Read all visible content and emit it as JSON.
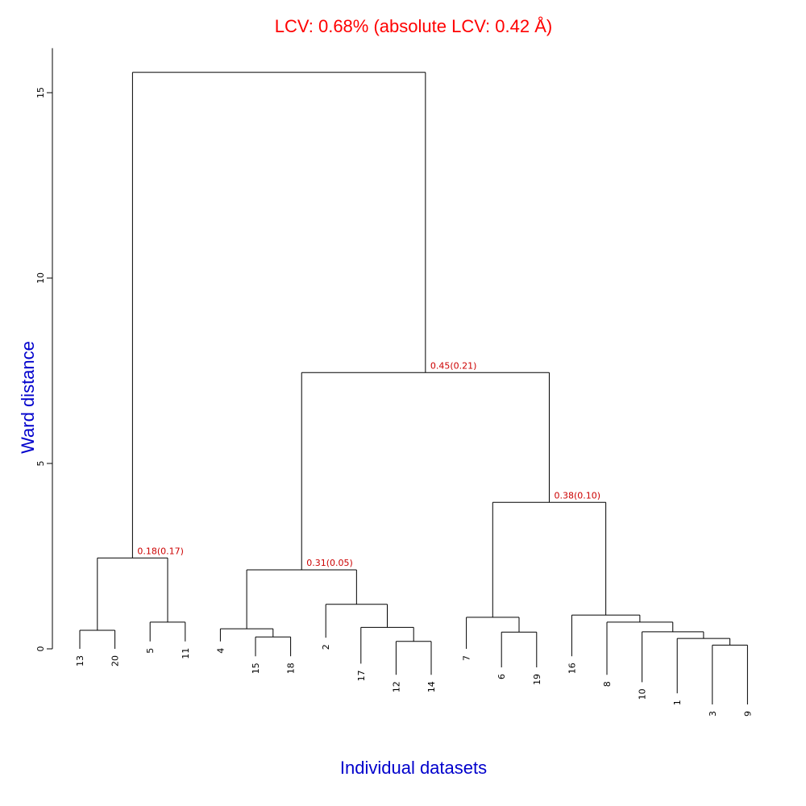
{
  "chart_data": {
    "type": "dendrogram",
    "title": "LCV: 0.68% (absolute LCV: 0.42 Å)",
    "xlabel": "Individual datasets",
    "ylabel": "Ward distance",
    "ylim": [
      0,
      16
    ],
    "yticks": [
      0,
      5,
      10,
      15
    ],
    "leaf_order": [
      "13",
      "20",
      "5",
      "11",
      "4",
      "15",
      "18",
      "2",
      "17",
      "12",
      "14",
      "7",
      "6",
      "19",
      "16",
      "8",
      "10",
      "1",
      "3",
      "9"
    ],
    "leaves": [
      {
        "label": "13",
        "height": 0.0
      },
      {
        "label": "20",
        "height": 0.0
      },
      {
        "label": "5",
        "height": 0.2
      },
      {
        "label": "11",
        "height": 0.2
      },
      {
        "label": "4",
        "height": 0.2
      },
      {
        "label": "15",
        "height": -0.2
      },
      {
        "label": "18",
        "height": -0.2
      },
      {
        "label": "2",
        "height": 0.3
      },
      {
        "label": "17",
        "height": -0.4
      },
      {
        "label": "12",
        "height": -0.7
      },
      {
        "label": "14",
        "height": -0.7
      },
      {
        "label": "7",
        "height": 0.0
      },
      {
        "label": "6",
        "height": -0.5
      },
      {
        "label": "19",
        "height": -0.5
      },
      {
        "label": "16",
        "height": -0.2
      },
      {
        "label": "8",
        "height": -0.7
      },
      {
        "label": "10",
        "height": -0.9
      },
      {
        "label": "1",
        "height": -1.2
      },
      {
        "label": "3",
        "height": -1.5
      },
      {
        "label": "9",
        "height": -1.5
      }
    ],
    "merges": [
      {
        "id": "m_13_20",
        "left": "13",
        "right": "20",
        "height": 0.5
      },
      {
        "id": "m_5_11",
        "left": "5",
        "right": "11",
        "height": 0.72
      },
      {
        "id": "m_g1",
        "left": "m_13_20",
        "right": "m_5_11",
        "height": 2.45,
        "label": "0.18(0.17)"
      },
      {
        "id": "m_15_18",
        "left": "15",
        "right": "18",
        "height": 0.32
      },
      {
        "id": "m_4_1518",
        "left": "4",
        "right": "m_15_18",
        "height": 0.54
      },
      {
        "id": "m_12_14",
        "left": "12",
        "right": "14",
        "height": 0.2
      },
      {
        "id": "m_17_1214",
        "left": "17",
        "right": "m_12_14",
        "height": 0.58
      },
      {
        "id": "m_2_17",
        "left": "2",
        "right": "m_17_1214",
        "height": 1.2
      },
      {
        "id": "m_g2",
        "left": "m_4_1518",
        "right": "m_2_17",
        "height": 2.13,
        "label": "0.31(0.05)"
      },
      {
        "id": "m_6_19",
        "left": "6",
        "right": "19",
        "height": 0.45
      },
      {
        "id": "m_7_619",
        "left": "7",
        "right": "m_6_19",
        "height": 0.85
      },
      {
        "id": "m_3_9",
        "left": "3",
        "right": "9",
        "height": 0.1
      },
      {
        "id": "m_1_39",
        "left": "1",
        "right": "m_3_9",
        "height": 0.28
      },
      {
        "id": "m_10_139",
        "left": "10",
        "right": "m_1_39",
        "height": 0.46
      },
      {
        "id": "m_8_10",
        "left": "8",
        "right": "m_10_139",
        "height": 0.72
      },
      {
        "id": "m_16_8",
        "left": "16",
        "right": "m_8_10",
        "height": 0.91
      },
      {
        "id": "m_g3",
        "left": "m_7_619",
        "right": "m_16_8",
        "height": 3.95,
        "label": "0.38(0.10)"
      },
      {
        "id": "m_g23",
        "left": "m_g2",
        "right": "m_g3",
        "height": 7.45,
        "label": "0.45(0.21)"
      },
      {
        "id": "m_root",
        "left": "m_g1",
        "right": "m_g23",
        "height": 15.55
      }
    ],
    "colors": {
      "title": "#ff0000",
      "axis_labels": "#0000cc",
      "node_labels": "#cc0000",
      "branches": "#000000"
    }
  }
}
